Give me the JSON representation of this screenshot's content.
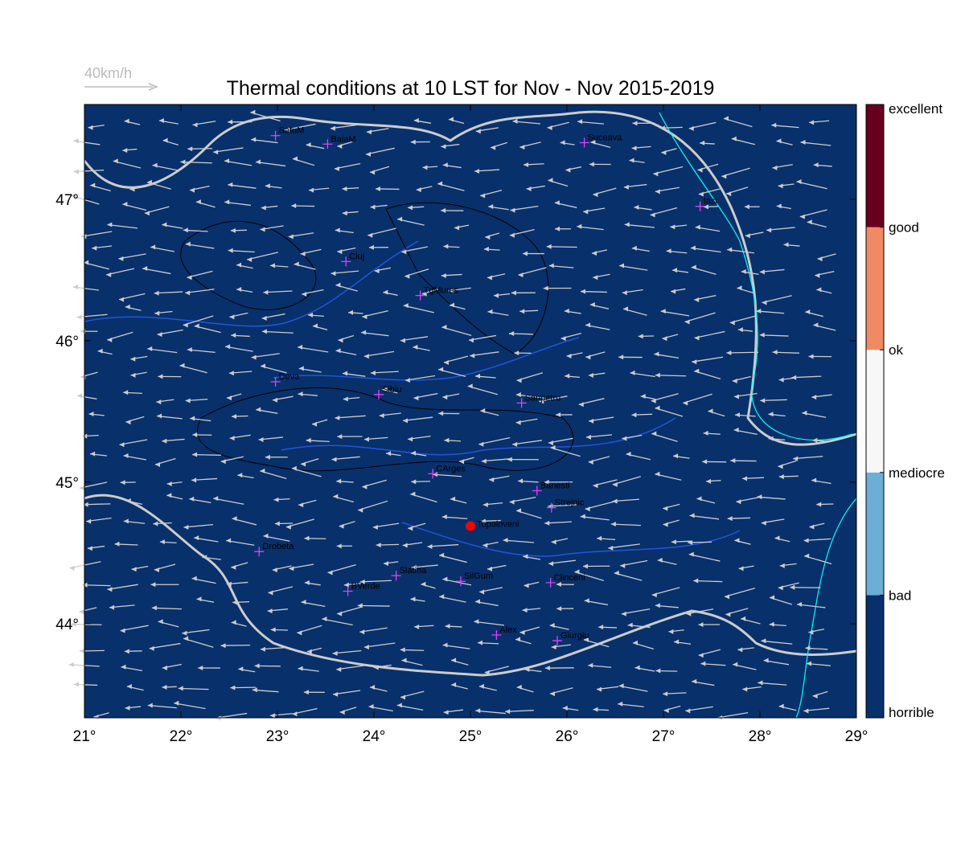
{
  "map": {
    "title": "Thermal conditions at 10 LST for Nov - Nov  2015-2019",
    "wind_legend": "40km/h",
    "xlim": [
      21,
      29
    ],
    "ylim": [
      43.335,
      47.67
    ],
    "xticks": [
      {
        "value": 21,
        "label": "21°"
      },
      {
        "value": 22,
        "label": "22°"
      },
      {
        "value": 23,
        "label": "23°"
      },
      {
        "value": 24,
        "label": "24°"
      },
      {
        "value": 25,
        "label": "25°"
      },
      {
        "value": 26,
        "label": "26°"
      },
      {
        "value": 27,
        "label": "27°"
      },
      {
        "value": 28,
        "label": "28°"
      },
      {
        "value": 29,
        "label": "29°"
      }
    ],
    "yticks": [
      {
        "value": 44,
        "label": "44°"
      },
      {
        "value": 45,
        "label": "45°"
      },
      {
        "value": 46,
        "label": "46°"
      },
      {
        "value": 47,
        "label": "47°"
      }
    ],
    "cities": [
      {
        "name": "SatuM",
        "lon": 22.98,
        "lat": 47.45
      },
      {
        "name": "BaiaM",
        "lon": 23.52,
        "lat": 47.39
      },
      {
        "name": "Suceava",
        "lon": 26.18,
        "lat": 47.4
      },
      {
        "name": "Iasi",
        "lon": 27.38,
        "lat": 46.95
      },
      {
        "name": "Cluj",
        "lon": 23.71,
        "lat": 46.56
      },
      {
        "name": "TgMures",
        "lon": 24.48,
        "lat": 46.32
      },
      {
        "name": "Deva",
        "lon": 22.98,
        "lat": 45.71
      },
      {
        "name": "Sibiu",
        "lon": 24.05,
        "lat": 45.62
      },
      {
        "name": "Sanpetru",
        "lon": 25.53,
        "lat": 45.56
      },
      {
        "name": "CArges",
        "lon": 24.61,
        "lat": 45.06
      },
      {
        "name": "Banesti",
        "lon": 25.69,
        "lat": 44.94
      },
      {
        "name": "Strejnic",
        "lon": 25.84,
        "lat": 44.82
      },
      {
        "name": "Drobeta",
        "lon": 22.81,
        "lat": 44.51
      },
      {
        "name": "Slatina",
        "lon": 24.23,
        "lat": 44.34
      },
      {
        "name": "SilGum",
        "lon": 24.9,
        "lat": 44.3
      },
      {
        "name": "Clinceni",
        "lon": 25.83,
        "lat": 44.29
      },
      {
        "name": "BVerde",
        "lon": 23.73,
        "lat": 44.23
      },
      {
        "name": "Alex",
        "lon": 25.27,
        "lat": 43.92
      },
      {
        "name": "Giurgiu",
        "lon": 25.9,
        "lat": 43.88
      }
    ],
    "site": {
      "name": "Topoloveni",
      "lon": 25.0,
      "lat": 44.69,
      "color": "#ff0000"
    },
    "colorbar": {
      "labels": [
        "horrible",
        "bad",
        "mediocre",
        "ok",
        "good",
        "excellent"
      ],
      "colors": [
        "#08306b",
        "#6baed6",
        "#f7f7f7",
        "#ef8a62",
        "#67001f"
      ]
    }
  }
}
